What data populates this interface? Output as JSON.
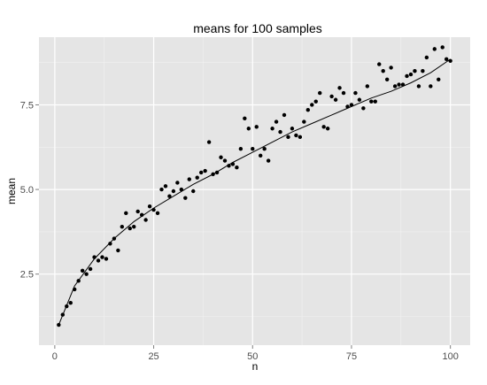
{
  "chart_data": {
    "type": "scatter",
    "title": "means for 100 samples",
    "xlabel": "n",
    "ylabel": "mean",
    "xlim": [
      -4,
      105
    ],
    "ylim": [
      0.4,
      9.5
    ],
    "x_ticks": [
      0,
      25,
      50,
      75,
      100
    ],
    "x_tick_labels": [
      "0",
      "25",
      "50",
      "75",
      "100"
    ],
    "y_ticks": [
      2.5,
      5.0,
      7.5
    ],
    "y_tick_labels": [
      "2.5",
      "5.0",
      "7.5"
    ],
    "grid": true,
    "legend": "none",
    "colors": {
      "panel": "#e5e5e5",
      "grid_major": "#ffffff",
      "grid_minor": "#f2f2f2",
      "points": "#000000",
      "trend": "#000000"
    },
    "points": {
      "x": [
        1,
        2,
        3,
        4,
        5,
        6,
        7,
        8,
        9,
        10,
        11,
        12,
        13,
        14,
        15,
        16,
        17,
        18,
        19,
        20,
        21,
        22,
        23,
        24,
        25,
        26,
        27,
        28,
        29,
        30,
        31,
        32,
        33,
        34,
        35,
        36,
        37,
        38,
        39,
        40,
        41,
        42,
        43,
        44,
        45,
        46,
        47,
        48,
        49,
        50,
        51,
        52,
        53,
        54,
        55,
        56,
        57,
        58,
        59,
        60,
        61,
        62,
        63,
        64,
        65,
        66,
        67,
        68,
        69,
        70,
        71,
        72,
        73,
        74,
        75,
        76,
        77,
        78,
        79,
        80,
        81,
        82,
        83,
        84,
        85,
        86,
        87,
        88,
        89,
        90,
        91,
        92,
        93,
        94,
        95,
        96,
        97,
        98,
        99,
        100
      ],
      "y": [
        1.0,
        1.3,
        1.55,
        1.65,
        2.05,
        2.3,
        2.6,
        2.5,
        2.65,
        3.0,
        2.9,
        3.0,
        2.95,
        3.4,
        3.55,
        3.2,
        3.9,
        4.3,
        3.85,
        3.9,
        4.35,
        4.25,
        4.1,
        4.5,
        4.4,
        4.3,
        5.0,
        5.1,
        4.8,
        4.95,
        5.2,
        5.0,
        4.75,
        5.3,
        4.95,
        5.35,
        5.5,
        5.55,
        6.4,
        5.45,
        5.5,
        5.95,
        5.85,
        5.7,
        5.75,
        5.65,
        6.2,
        7.1,
        6.8,
        6.2,
        6.85,
        6.0,
        6.2,
        5.85,
        6.8,
        7.0,
        6.7,
        7.2,
        6.55,
        6.8,
        6.6,
        6.55,
        7.0,
        7.35,
        7.5,
        7.6,
        7.85,
        6.85,
        6.8,
        7.75,
        7.65,
        8.0,
        7.85,
        7.45,
        7.5,
        7.85,
        7.65,
        7.4,
        8.05,
        7.6,
        7.6,
        8.7,
        8.5,
        8.25,
        8.6,
        8.05,
        8.1,
        8.1,
        8.35,
        8.4,
        8.5,
        8.05,
        8.5,
        8.9,
        8.05,
        9.15,
        8.25,
        9.2,
        8.85,
        8.8
      ]
    },
    "trend": {
      "x": [
        1,
        5,
        10,
        15,
        20,
        25,
        30,
        35,
        40,
        45,
        50,
        55,
        60,
        65,
        70,
        75,
        80,
        85,
        90,
        95,
        100
      ],
      "y": [
        1.0,
        2.15,
        2.95,
        3.55,
        4.05,
        4.45,
        4.8,
        5.15,
        5.45,
        5.8,
        6.1,
        6.4,
        6.7,
        6.95,
        7.2,
        7.45,
        7.7,
        7.9,
        8.15,
        8.45,
        8.85
      ]
    }
  }
}
